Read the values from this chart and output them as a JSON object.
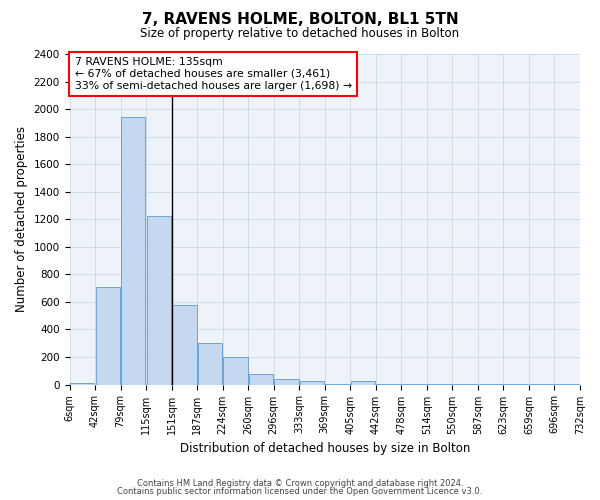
{
  "title": "7, RAVENS HOLME, BOLTON, BL1 5TN",
  "subtitle": "Size of property relative to detached houses in Bolton",
  "xlabel": "Distribution of detached houses by size in Bolton",
  "ylabel": "Number of detached properties",
  "footer_line1": "Contains HM Land Registry data © Crown copyright and database right 2024.",
  "footer_line2": "Contains public sector information licensed under the Open Government Licence v3.0.",
  "annotation_title": "7 RAVENS HOLME: 135sqm",
  "annotation_line1": "← 67% of detached houses are smaller (3,461)",
  "annotation_line2": "33% of semi-detached houses are larger (1,698) →",
  "bar_heights": [
    15,
    710,
    1940,
    1225,
    575,
    305,
    200,
    75,
    38,
    28,
    5,
    28,
    5,
    5,
    5,
    5,
    5,
    5,
    5,
    5
  ],
  "bar_color": "#c5d8ef",
  "bar_edge_color": "#5b9bd5",
  "ylim": [
    0,
    2400
  ],
  "yticks": [
    0,
    200,
    400,
    600,
    800,
    1000,
    1200,
    1400,
    1600,
    1800,
    2000,
    2200,
    2400
  ],
  "xtick_labels": [
    "6sqm",
    "42sqm",
    "79sqm",
    "115sqm",
    "151sqm",
    "187sqm",
    "224sqm",
    "260sqm",
    "296sqm",
    "333sqm",
    "369sqm",
    "405sqm",
    "442sqm",
    "478sqm",
    "514sqm",
    "550sqm",
    "587sqm",
    "623sqm",
    "659sqm",
    "696sqm",
    "732sqm"
  ],
  "property_bin_index": 3,
  "grid_color": "#c8d8ea",
  "bg_color": "#eef3fa",
  "n_bars": 20
}
